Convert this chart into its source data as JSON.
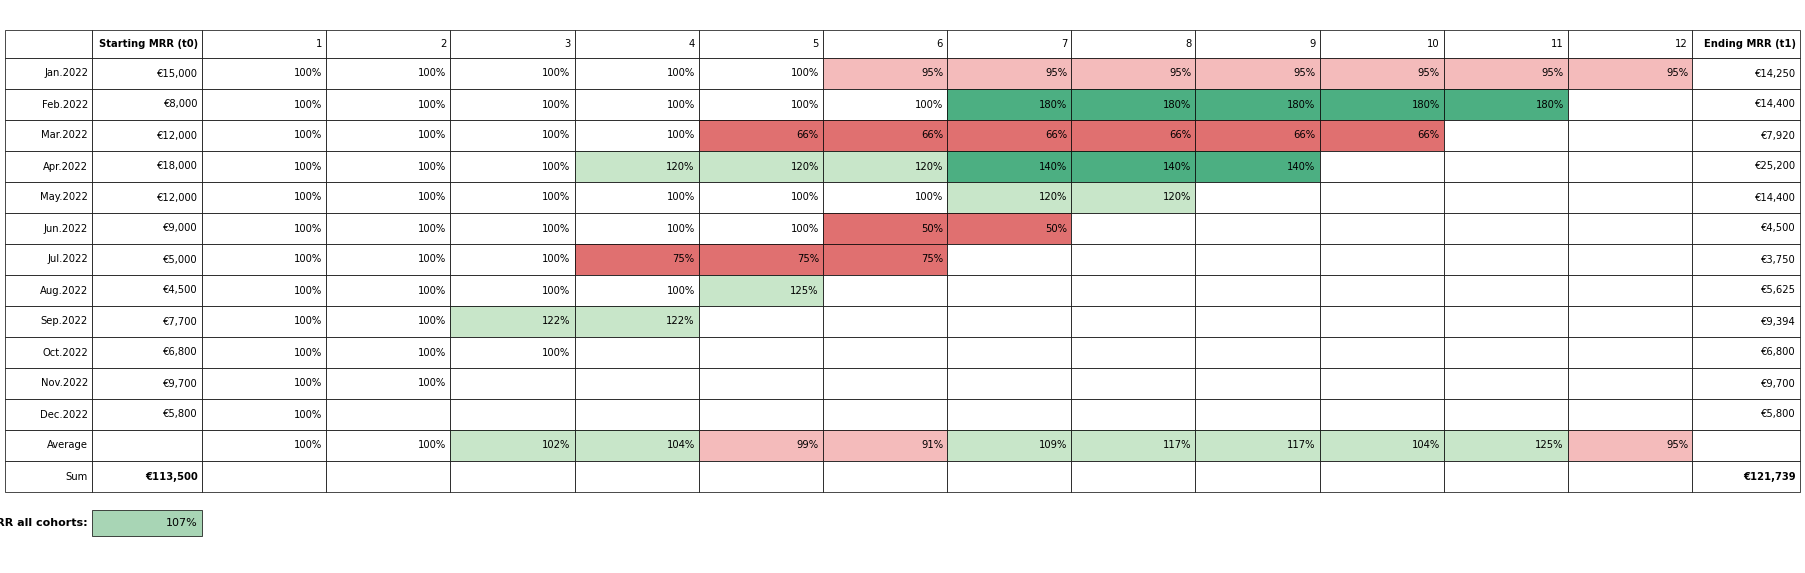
{
  "col_headers": [
    "Starting MRR (t0)",
    "1",
    "2",
    "3",
    "4",
    "5",
    "6",
    "7",
    "8",
    "9",
    "10",
    "11",
    "12",
    "Ending MRR (t1)"
  ],
  "row_labels": [
    "Jan.2022",
    "Feb.2022",
    "Mar.2022",
    "Apr.2022",
    "May.2022",
    "Jun.2022",
    "Jul.2022",
    "Aug.2022",
    "Sep.2022",
    "Oct.2022",
    "Nov.2022",
    "Dec.2022",
    "Average",
    "Sum"
  ],
  "starting_mrr": [
    "€15,000",
    "€8,000",
    "€12,000",
    "€18,000",
    "€12,000",
    "€9,000",
    "€5,000",
    "€4,500",
    "€7,700",
    "€6,800",
    "€9,700",
    "€5,800",
    "",
    "€113,500"
  ],
  "ending_mrr": [
    "€14,250",
    "€14,400",
    "€7,920",
    "€25,200",
    "€14,400",
    "€4,500",
    "€3,750",
    "€5,625",
    "€9,394",
    "€6,800",
    "€9,700",
    "€5,800",
    "",
    "€121,739"
  ],
  "cohort_data": [
    [
      100,
      100,
      100,
      100,
      100,
      95,
      95,
      95,
      95,
      95,
      95,
      95
    ],
    [
      100,
      100,
      100,
      100,
      100,
      100,
      180,
      180,
      180,
      180,
      180,
      null
    ],
    [
      100,
      100,
      100,
      100,
      66,
      66,
      66,
      66,
      66,
      66,
      null,
      null
    ],
    [
      100,
      100,
      100,
      120,
      120,
      120,
      140,
      140,
      140,
      null,
      null,
      null
    ],
    [
      100,
      100,
      100,
      100,
      100,
      100,
      120,
      120,
      null,
      null,
      null,
      null
    ],
    [
      100,
      100,
      100,
      100,
      100,
      50,
      50,
      null,
      null,
      null,
      null,
      null
    ],
    [
      100,
      100,
      100,
      75,
      75,
      75,
      null,
      null,
      null,
      null,
      null,
      null
    ],
    [
      100,
      100,
      100,
      100,
      125,
      null,
      null,
      null,
      null,
      null,
      null,
      null
    ],
    [
      100,
      100,
      122,
      122,
      null,
      null,
      null,
      null,
      null,
      null,
      null,
      null
    ],
    [
      100,
      100,
      100,
      null,
      null,
      null,
      null,
      null,
      null,
      null,
      null,
      null
    ],
    [
      100,
      100,
      null,
      null,
      null,
      null,
      null,
      null,
      null,
      null,
      null,
      null
    ],
    [
      100,
      null,
      null,
      null,
      null,
      null,
      null,
      null,
      null,
      null,
      null,
      null
    ]
  ],
  "avg_row": [
    100,
    100,
    102,
    104,
    99,
    91,
    109,
    117,
    117,
    104,
    125,
    95
  ],
  "nrr_all_cohorts": "107%",
  "sum_starting": "€113,500",
  "sum_ending": "€121,739",
  "green_strong": "#4CAF82",
  "green_light": "#C8E6C9",
  "red_strong": "#E07070",
  "red_light": "#F4BBBB",
  "neutral": "#FFFFFF",
  "border_color": "#000000",
  "nrr_box_color": "#A8D5B5"
}
